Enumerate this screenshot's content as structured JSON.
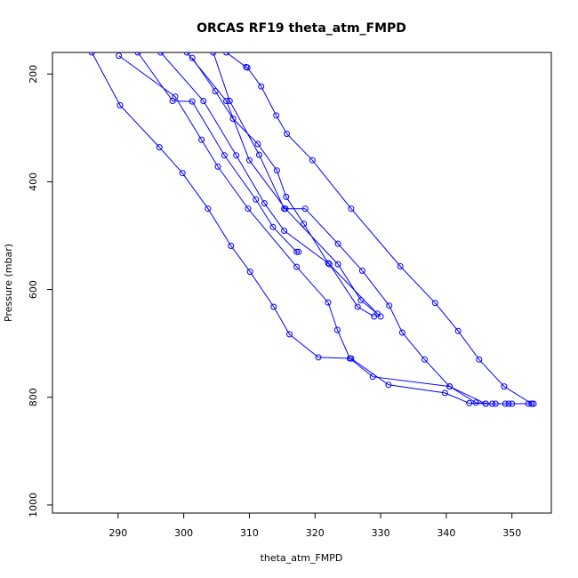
{
  "chart_data": {
    "type": "line",
    "title": "ORCAS RF19 theta_atm_FMPD",
    "xlabel": "theta_atm_FMPD",
    "ylabel": "Pressure (mbar)",
    "xlim": [
      280,
      356
    ],
    "ylim": [
      1015,
      160
    ],
    "y_reversed": true,
    "x_ticks": [
      290,
      300,
      310,
      320,
      330,
      340,
      350
    ],
    "y_ticks": [
      200,
      400,
      600,
      800,
      1000
    ],
    "grid": false,
    "legend": "none",
    "line_color": "#0000ff",
    "marker": "open-circle",
    "series": [
      {
        "points": [
          [
            286,
            160
          ],
          [
            290.3,
            258
          ],
          [
            296.3,
            336
          ],
          [
            299.8,
            384
          ],
          [
            303.7,
            450
          ],
          [
            307.2,
            519
          ],
          [
            310.1,
            567
          ],
          [
            313.7,
            632
          ],
          [
            316.1,
            683
          ],
          [
            320.5,
            726
          ],
          [
            325.5,
            728
          ],
          [
            331.2,
            777
          ],
          [
            339.8,
            792
          ],
          [
            343.5,
            811
          ],
          [
            346,
            812
          ],
          [
            347.5,
            812
          ],
          [
            350,
            812
          ],
          [
            353,
            812
          ]
        ]
      },
      {
        "points": [
          [
            290.1,
            166
          ],
          [
            298.7,
            242
          ],
          [
            302.7,
            322
          ],
          [
            305.2,
            372
          ],
          [
            309.8,
            450
          ],
          [
            317.2,
            558
          ],
          [
            322,
            624
          ],
          [
            323.4,
            675
          ],
          [
            325.3,
            728
          ],
          [
            328.8,
            762
          ],
          [
            340.5,
            780
          ],
          [
            346,
            812
          ],
          [
            349,
            812
          ],
          [
            352.5,
            812
          ]
        ]
      },
      {
        "points": [
          [
            293,
            160
          ],
          [
            298.3,
            250
          ],
          [
            301.3,
            251
          ],
          [
            306.2,
            351
          ],
          [
            311,
            433
          ],
          [
            313.6,
            484
          ],
          [
            317.2,
            530
          ],
          [
            317.5,
            530
          ]
        ]
      },
      {
        "points": [
          [
            296.5,
            160
          ],
          [
            303,
            250
          ],
          [
            308,
            351
          ],
          [
            312.3,
            440
          ],
          [
            315.3,
            491
          ],
          [
            322.2,
            553
          ],
          [
            326.5,
            632
          ],
          [
            329,
            650
          ]
        ]
      },
      {
        "points": [
          [
            300.5,
            160
          ],
          [
            306.5,
            250
          ],
          [
            310,
            360
          ],
          [
            315.5,
            450
          ],
          [
            323.5,
            553
          ],
          [
            327,
            620
          ],
          [
            330,
            650
          ]
        ]
      },
      {
        "points": [
          [
            301.3,
            170
          ],
          [
            304.8,
            232
          ],
          [
            307.5,
            283
          ],
          [
            311.3,
            330
          ],
          [
            314.2,
            379
          ],
          [
            315.6,
            428
          ],
          [
            318.3,
            478
          ],
          [
            322,
            551
          ],
          [
            329.5,
            645
          ]
        ]
      },
      {
        "points": [
          [
            304.5,
            160
          ],
          [
            307,
            250
          ],
          [
            311.5,
            350
          ],
          [
            315.3,
            450
          ],
          [
            318.5,
            450
          ],
          [
            323.5,
            515
          ],
          [
            327.2,
            565
          ],
          [
            331.3,
            630
          ],
          [
            333.3,
            680
          ],
          [
            336.7,
            730
          ],
          [
            340.5,
            780
          ],
          [
            344.5,
            810
          ],
          [
            347,
            812
          ],
          [
            349.5,
            812
          ],
          [
            353.3,
            812
          ]
        ]
      },
      {
        "points": [
          [
            306.5,
            160
          ],
          [
            309.5,
            187
          ],
          [
            309.7,
            188
          ],
          [
            311.8,
            223
          ],
          [
            314.1,
            277
          ],
          [
            315.7,
            311
          ],
          [
            319.6,
            360
          ],
          [
            325.5,
            450
          ],
          [
            333,
            557
          ],
          [
            338.3,
            625
          ],
          [
            341.8,
            677
          ],
          [
            345,
            730
          ],
          [
            348.8,
            780
          ],
          [
            353,
            812
          ]
        ]
      }
    ]
  }
}
